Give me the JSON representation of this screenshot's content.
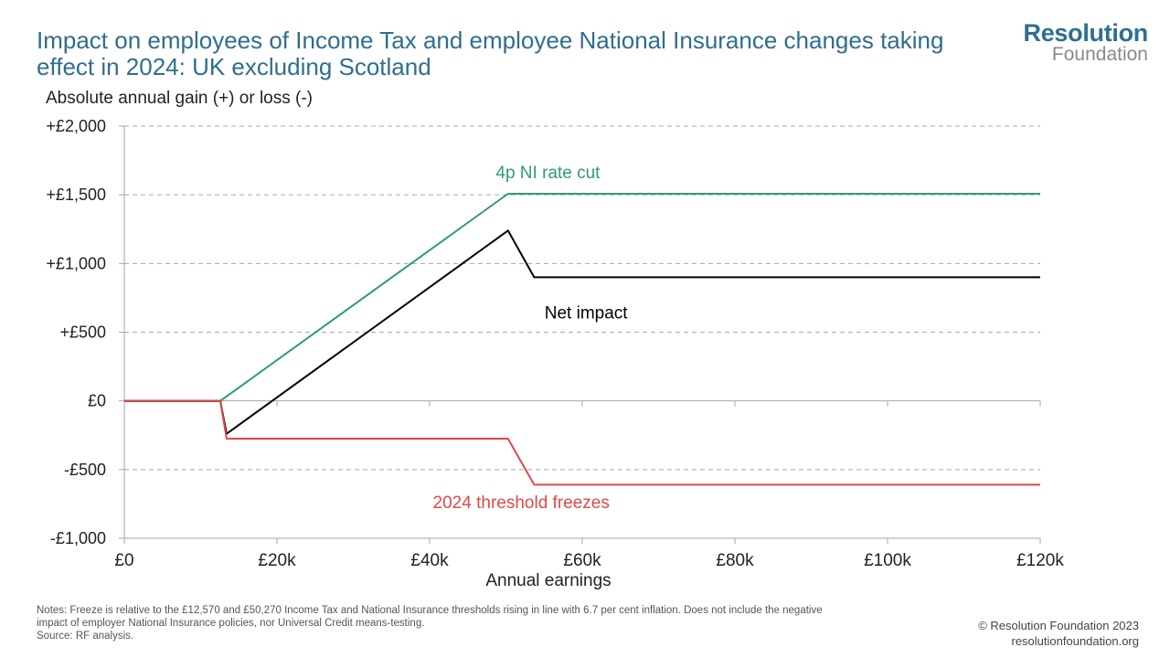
{
  "title": "Impact on employees of Income Tax and employee National Insurance changes taking effect in 2024: UK excluding Scotland",
  "logo": {
    "line1": "Resolution",
    "line2": "Foundation"
  },
  "notes": {
    "line1": "Notes: Freeze is relative to the £12,570 and £50,270 Income Tax and National Insurance thresholds rising in line with 6.7 per cent inflation. Does not include the negative",
    "line2": "impact of employer National Insurance policies, nor Universal Credit means-testing.",
    "source": "Source: RF analysis."
  },
  "copyright": {
    "line1": "© Resolution Foundation 2023",
    "line2": "resolutionfoundation.org"
  },
  "colors": {
    "title": "#2f6e8e",
    "nic": "#2e9e6a",
    "net": "#000000",
    "freeze": "#e0474c",
    "grid": "#a6a6a6"
  },
  "chart_data": {
    "type": "line",
    "ylabel": "Absolute annual gain (+) or loss (-)",
    "xlabel": "Annual earnings",
    "xlim": [
      0,
      120000
    ],
    "ylim": [
      -1000,
      2000
    ],
    "xticks": [
      0,
      20000,
      40000,
      60000,
      80000,
      100000,
      120000
    ],
    "xtick_labels": [
      "£0",
      "£20k",
      "£40k",
      "£60k",
      "£80k",
      "£100k",
      "£120k"
    ],
    "yticks": [
      -1000,
      -500,
      0,
      500,
      1000,
      1500,
      2000
    ],
    "ytick_labels": [
      "-£1,000",
      "-£500",
      "£0",
      "+£500",
      "+£1,000",
      "+£1,500",
      "+£2,000"
    ],
    "grid": "horizontal dashed",
    "series": [
      {
        "name": "4p NI rate cut",
        "color": "#2e9e6a",
        "label_at": [
          55500,
          1660
        ],
        "points": [
          [
            0,
            0
          ],
          [
            12570,
            0
          ],
          [
            50270,
            1508
          ],
          [
            120000,
            1508
          ]
        ]
      },
      {
        "name": "Net impact",
        "color": "#000000",
        "label_at": [
          60500,
          640
        ],
        "points": [
          [
            0,
            0
          ],
          [
            12570,
            0
          ],
          [
            13400,
            -240
          ],
          [
            50270,
            1240
          ],
          [
            53700,
            900
          ],
          [
            120000,
            900
          ]
        ]
      },
      {
        "name": "2024 threshold freezes",
        "color": "#e0474c",
        "label_at": [
          52000,
          -740
        ],
        "points": [
          [
            0,
            0
          ],
          [
            12570,
            0
          ],
          [
            13400,
            -275
          ],
          [
            50270,
            -275
          ],
          [
            53700,
            -610
          ],
          [
            120000,
            -610
          ]
        ]
      }
    ]
  }
}
